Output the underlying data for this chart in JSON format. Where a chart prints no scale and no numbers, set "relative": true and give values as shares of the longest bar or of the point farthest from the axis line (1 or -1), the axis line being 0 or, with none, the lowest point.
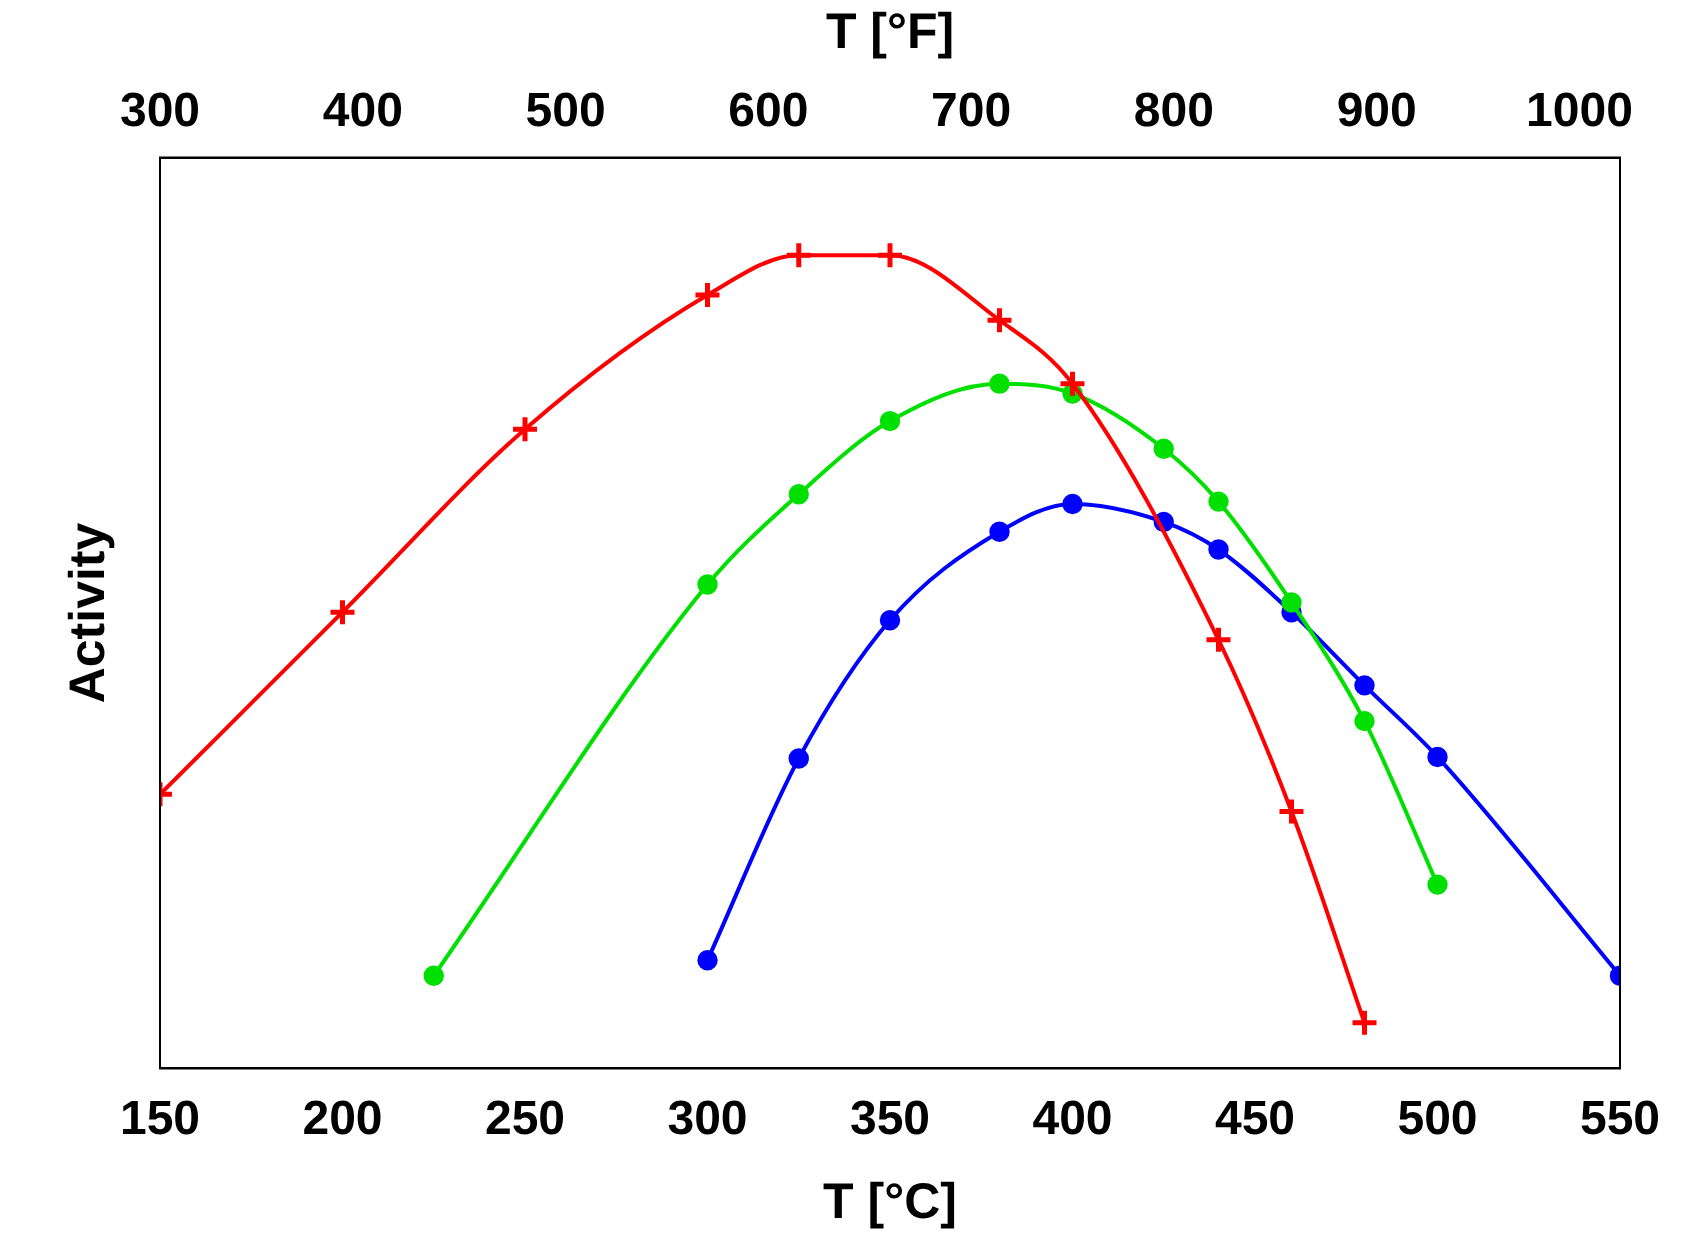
{
  "chart_data": {
    "type": "line",
    "xlabel": "T [°C]",
    "x2label": "T [°F]",
    "ylabel": "Activity",
    "relative": true,
    "xlim": [
      150,
      550
    ],
    "xticks": [
      150,
      200,
      250,
      300,
      350,
      400,
      450,
      500,
      550
    ],
    "x2lim": [
      300,
      1020
    ],
    "x2ticks": [
      300,
      400,
      500,
      600,
      700,
      800,
      900,
      1000
    ],
    "grid": false,
    "legend": false,
    "line_style": "solid",
    "series": [
      {
        "color": "#ff0000",
        "marker": "cross",
        "x": [
          150,
          200,
          250,
          300,
          325,
          350,
          380,
          400,
          440,
          460,
          480
        ],
        "values": [
          0.337,
          0.561,
          0.786,
          0.951,
          1,
          1,
          0.92,
          0.842,
          0.527,
          0.316,
          0.056
        ]
      },
      {
        "color": "#00e000",
        "marker": "circle",
        "x": [
          225,
          300,
          325,
          350,
          380,
          400,
          425,
          440,
          460,
          480,
          500
        ],
        "values": [
          0.114,
          0.595,
          0.706,
          0.796,
          0.842,
          0.83,
          0.762,
          0.697,
          0.573,
          0.427,
          0.226
        ]
      },
      {
        "color": "#0000ff",
        "marker": "circle",
        "x": [
          300,
          325,
          350,
          380,
          400,
          425,
          440,
          460,
          480,
          500,
          550
        ],
        "values": [
          0.133,
          0.381,
          0.551,
          0.66,
          0.694,
          0.672,
          0.638,
          0.561,
          0.471,
          0.383,
          0.114
        ]
      }
    ]
  }
}
